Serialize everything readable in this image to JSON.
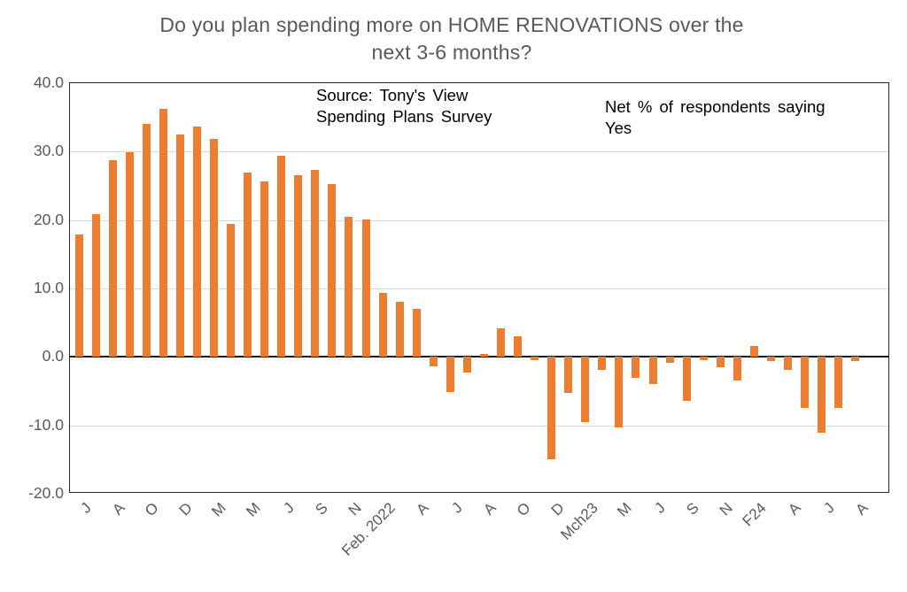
{
  "title": {
    "line1": "Do you plan spending more on HOME RENOVATIONS over the",
    "line2": "next 3-6 months?"
  },
  "annotations": {
    "source_line1": "Source: Tony's View",
    "source_line2": "Spending Plans Survey",
    "net_line1": "Net % of respondents saying",
    "net_line2": "Yes"
  },
  "colors": {
    "bar": "#ED7D31",
    "gridline": "#D9D9D9",
    "axis_line": "#1A1A1A",
    "plot_border": "#262626",
    "tick_text": "#595959",
    "title_text": "#595959",
    "annotation_text": "#000000",
    "background": "#FFFFFF"
  },
  "y_axis": {
    "ticks": [
      "40.0",
      "30.0",
      "20.0",
      "10.0",
      "0.0",
      "-10.0",
      "-20.0"
    ],
    "tick_values": [
      40,
      30,
      20,
      10,
      0,
      -10,
      -20
    ]
  },
  "chart_data": {
    "type": "bar",
    "title": "Do you plan spending more on HOME RENOVATIONS over the next 3-6 months?",
    "ylabel": "",
    "xlabel": "",
    "ylim": [
      -20,
      40
    ],
    "grid": "horizontal",
    "legend": "none",
    "bar_color": "#ED7D31",
    "tick_every_n_bars": 2,
    "x_tick_labels": [
      "J",
      "A",
      "O",
      "D",
      "M",
      "M",
      "J",
      "S",
      "N",
      "Feb. 2022",
      "A",
      "J",
      "A",
      "O",
      "D",
      "Mch23",
      "M",
      "J",
      "S",
      "N",
      "F24",
      "A",
      "J",
      "A"
    ],
    "values": [
      17.9,
      20.9,
      28.7,
      29.9,
      34.1,
      36.3,
      32.5,
      33.6,
      31.9,
      19.4,
      26.9,
      25.6,
      29.4,
      26.5,
      27.3,
      25.2,
      20.5,
      20.1,
      9.3,
      8.1,
      7.0,
      -1.4,
      -5.1,
      -2.3,
      0.4,
      4.2,
      3.0,
      -0.5,
      -14.9,
      -5.3,
      -9.5,
      -1.9,
      -10.3,
      -3.1,
      -4.0,
      -0.8,
      -6.4,
      -0.5,
      -1.5,
      -3.5,
      1.6,
      -0.6,
      -1.9,
      -7.5,
      -11.1,
      -7.5,
      -0.6
    ],
    "annotations": [
      "Source: Tony's View Spending Plans Survey",
      "Net % of respondents saying Yes"
    ]
  }
}
